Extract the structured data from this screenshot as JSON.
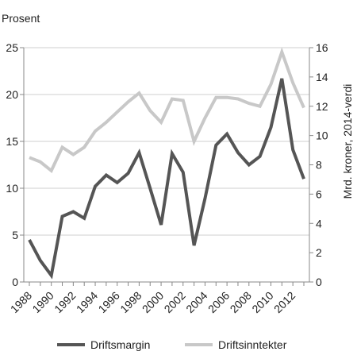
{
  "chart_data": {
    "type": "line",
    "x": [
      1988,
      1989,
      1990,
      1991,
      1992,
      1993,
      1994,
      1995,
      1996,
      1997,
      1998,
      1999,
      2000,
      2001,
      2002,
      2003,
      2004,
      2005,
      2006,
      2007,
      2008,
      2009,
      2010,
      2011,
      2012,
      2013
    ],
    "x_tick_labels": [
      "1988",
      "1990",
      "1992",
      "1994",
      "1996",
      "1998",
      "2000",
      "2002",
      "2004",
      "2006",
      "2008",
      "2010",
      "2012"
    ],
    "x_ticks": [
      1988,
      1990,
      1992,
      1994,
      1996,
      1998,
      2000,
      2002,
      2004,
      2006,
      2008,
      2010,
      2012
    ],
    "left_axis": {
      "label": "Prosent",
      "range": [
        0,
        25
      ],
      "ticks": [
        0,
        5,
        10,
        15,
        20,
        25
      ]
    },
    "right_axis": {
      "label": "Mrd. kroner, 2014-verdi",
      "range": [
        0,
        16
      ],
      "ticks": [
        0,
        2,
        4,
        6,
        8,
        10,
        12,
        14,
        16
      ]
    },
    "series": [
      {
        "name": "Driftsmargin",
        "axis": "left",
        "color": "#555555",
        "values": [
          4.5,
          2.3,
          0.7,
          7.0,
          7.5,
          6.8,
          10.2,
          11.4,
          10.6,
          11.6,
          13.8,
          10.0,
          6.1,
          13.7,
          11.7,
          3.9,
          8.9,
          14.6,
          15.8,
          13.8,
          12.5,
          13.4,
          16.5,
          21.7,
          14.1,
          11.0
        ]
      },
      {
        "name": "Driftsinntekter",
        "axis": "right",
        "color": "#c8c8c8",
        "values": [
          8.5,
          8.2,
          7.6,
          9.2,
          8.7,
          9.2,
          10.3,
          10.9,
          11.6,
          12.3,
          12.9,
          11.7,
          10.9,
          12.5,
          12.4,
          9.6,
          11.2,
          12.6,
          12.6,
          12.5,
          12.2,
          12.0,
          13.5,
          15.7,
          13.6,
          11.9
        ]
      }
    ],
    "grid": {
      "horizontal": true
    },
    "legend": {
      "position": "bottom"
    }
  }
}
